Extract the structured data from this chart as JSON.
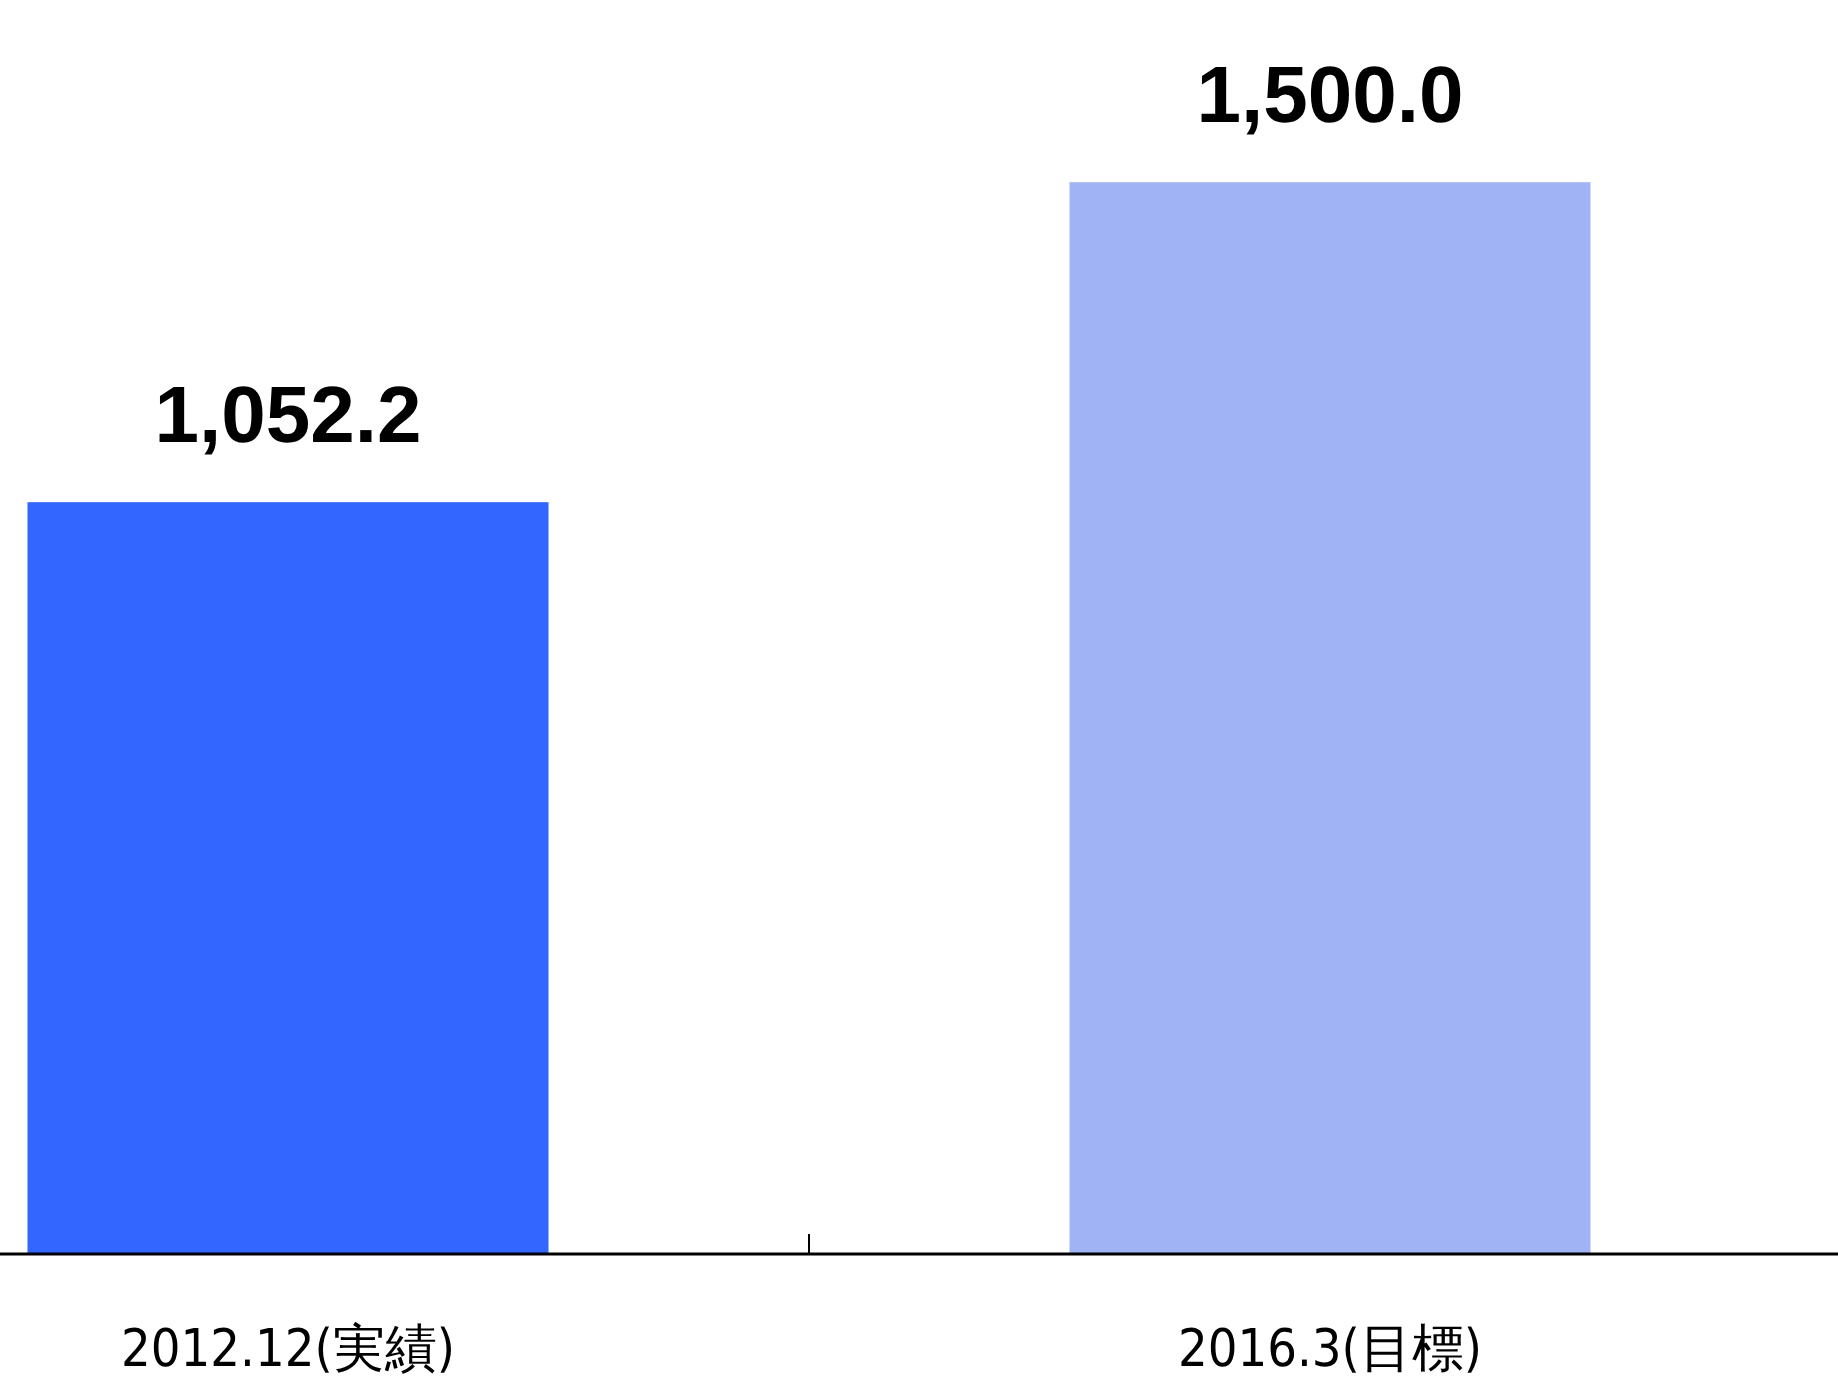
{
  "chart_data": {
    "type": "bar",
    "categories": [
      "2012.12(実績)",
      "2016.3(目標)"
    ],
    "values": [
      1052.2,
      1500.0
    ],
    "value_labels": [
      "1,052.2",
      "1,500.0"
    ],
    "colors": [
      "#3366ff",
      "#9fb3f5"
    ]
  }
}
